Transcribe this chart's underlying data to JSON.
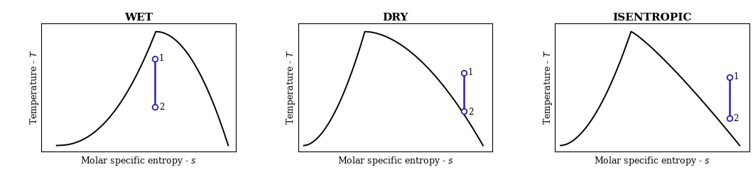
{
  "titles": [
    "WET",
    "DRY",
    "ISENTROPIC"
  ],
  "xlabel": "Molar specific entropy - ",
  "xlabel_italic": "s",
  "ylabel": "Temperature - ",
  "ylabel_italic": "T",
  "title_fontsize": 11,
  "label_fontsize": 9,
  "curve_color": "#000000",
  "line_color": "#2222BB",
  "marker_color": "#2222BB",
  "bg_color": "#ffffff",
  "grid_color": "#cccccc",
  "panels": [
    {
      "type": "wet",
      "point1": [
        0.595,
        0.76
      ],
      "point2": [
        0.595,
        0.34
      ]
    },
    {
      "type": "dry",
      "point1": [
        0.87,
        0.635
      ],
      "point2": [
        0.87,
        0.3
      ]
    },
    {
      "type": "isentropic",
      "point1": [
        0.915,
        0.6
      ],
      "point2": [
        0.915,
        0.24
      ]
    }
  ]
}
